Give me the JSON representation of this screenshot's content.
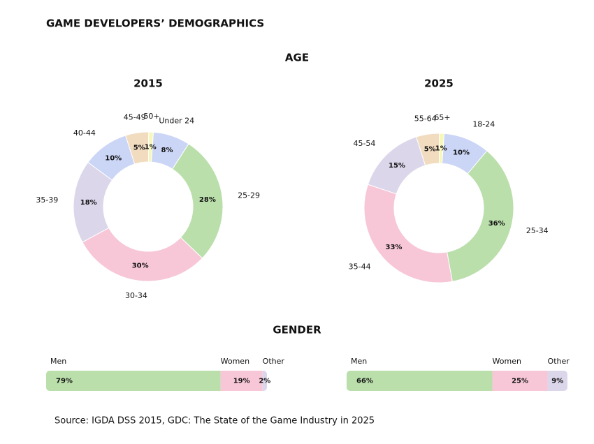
{
  "title": "GAME DEVELOPERS’ DEMOGRAPHICS",
  "sections": [
    "AGE",
    "GENDER"
  ],
  "source": "Source: IGDA DSS 2015, GDC: The State of the Game Industry in 2025",
  "chart_data": [
    {
      "type": "donut",
      "title": "2015",
      "categories": [
        "Under 24",
        "25-29",
        "30-34",
        "35-39",
        "40-44",
        "45-49",
        "50+"
      ],
      "values": [
        8,
        28,
        30,
        18,
        10,
        5,
        1
      ],
      "value_labels": [
        "8%",
        "28%",
        "30%",
        "18%",
        "10%",
        "5%",
        "1%"
      ],
      "colors": [
        "#cbd5f6",
        "#badfab",
        "#f7c7d7",
        "#dcd6eb",
        "#cbd5f6",
        "#f1dcc0",
        "#f7f7b8"
      ]
    },
    {
      "type": "donut",
      "title": "2025",
      "categories": [
        "18-24",
        "25-34",
        "35-44",
        "45-54",
        "55-64",
        "65+"
      ],
      "values": [
        10,
        36,
        33,
        15,
        5,
        1
      ],
      "value_labels": [
        "10%",
        "36%",
        "33%",
        "15%",
        "5%",
        "1%"
      ],
      "colors": [
        "#cbd5f6",
        "#badfab",
        "#f7c7d7",
        "#dcd6eb",
        "#f1dcc0",
        "#f7f7b8"
      ]
    },
    {
      "type": "stacked_bar",
      "xlim": [
        0,
        100
      ],
      "series": [
        {
          "name": "Men",
          "color": "#badfab",
          "values": [
            79
          ],
          "value_labels": [
            "79%"
          ]
        },
        {
          "name": "Women",
          "color": "#f7c7d7",
          "values": [
            19
          ],
          "value_labels": [
            "19%"
          ]
        },
        {
          "name": "Other",
          "color": "#dcd6eb",
          "values": [
            2
          ],
          "value_labels": [
            "2%"
          ]
        }
      ]
    },
    {
      "type": "stacked_bar",
      "xlim": [
        0,
        100
      ],
      "series": [
        {
          "name": "Men",
          "color": "#badfab",
          "values": [
            66
          ],
          "value_labels": [
            "66%"
          ]
        },
        {
          "name": "Women",
          "color": "#f7c7d7",
          "values": [
            25
          ],
          "value_labels": [
            "25%"
          ]
        },
        {
          "name": "Other",
          "color": "#dcd6eb",
          "values": [
            9
          ],
          "value_labels": [
            "9%"
          ]
        }
      ]
    }
  ]
}
